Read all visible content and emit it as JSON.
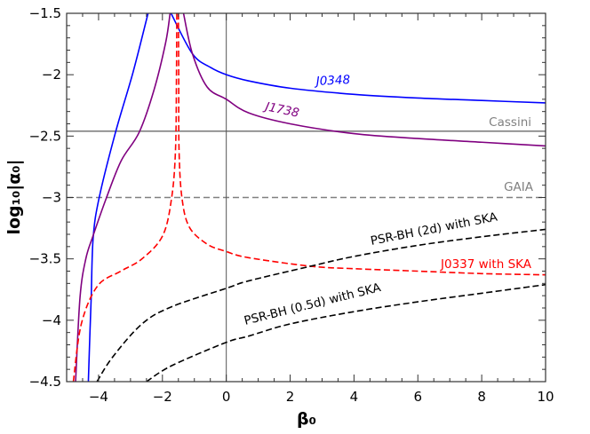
{
  "chart_data": {
    "type": "line",
    "xlabel": "β₀",
    "ylabel": "log₁₀|α₀|",
    "xlim": [
      -5,
      10
    ],
    "ylim": [
      -4.5,
      -1.5
    ],
    "x_ticks": [
      "-4",
      "-2",
      "0",
      "2",
      "4",
      "6",
      "8",
      "10"
    ],
    "y_ticks": [
      "-1.5",
      "-2",
      "-2.5",
      "-3",
      "-3.5",
      "-4",
      "-4.5"
    ],
    "grid": false,
    "vertical_reference_at": 0,
    "series": [
      {
        "name": "J0348",
        "color": "#0000ff",
        "style": "solid",
        "segments": [
          [
            [
              -4.32,
              -4.5
            ],
            [
              -4.27,
              -4.1
            ],
            [
              -4.23,
              -3.81
            ],
            [
              -4.17,
              -3.33
            ],
            [
              -3.98,
              -3.0
            ],
            [
              -3.47,
              -2.47
            ],
            [
              -2.92,
              -1.98
            ],
            [
              -2.45,
              -1.5
            ]
          ],
          [
            [
              -1.73,
              -1.5
            ],
            [
              -1.06,
              -1.83
            ],
            [
              -0.5,
              -1.94
            ],
            [
              0,
              -2.0
            ],
            [
              0.69,
              -2.05
            ],
            [
              2,
              -2.11
            ],
            [
              4,
              -2.16
            ],
            [
              6,
              -2.19
            ],
            [
              8,
              -2.21
            ],
            [
              10,
              -2.23
            ]
          ]
        ]
      },
      {
        "name": "J1738",
        "color": "#800080",
        "style": "solid",
        "segments": [
          [
            [
              -4.72,
              -4.5
            ],
            [
              -4.58,
              -3.81
            ],
            [
              -4.4,
              -3.5
            ],
            [
              -4.17,
              -3.31
            ],
            [
              -3.75,
              -3.0
            ],
            [
              -3.29,
              -2.7
            ],
            [
              -2.73,
              -2.47
            ],
            [
              -2.27,
              -2.13
            ],
            [
              -1.9,
              -1.74
            ],
            [
              -1.76,
              -1.5
            ]
          ],
          [
            [
              -1.34,
              -1.5
            ],
            [
              -1.06,
              -1.83
            ],
            [
              -0.6,
              -2.1
            ],
            [
              0,
              -2.2
            ],
            [
              0.69,
              -2.31
            ],
            [
              2,
              -2.4
            ],
            [
              4,
              -2.48
            ],
            [
              6,
              -2.52
            ],
            [
              8,
              -2.55
            ],
            [
              10,
              -2.58
            ]
          ]
        ]
      },
      {
        "name": "J0337 with SKA",
        "color": "#ff0000",
        "style": "dashed",
        "segments": [
          [
            [
              -4.79,
              -4.5
            ],
            [
              -4.54,
              -4.03
            ],
            [
              -4.03,
              -3.72
            ],
            [
              -3.3,
              -3.6
            ],
            [
              -2.64,
              -3.5
            ],
            [
              -1.99,
              -3.31
            ],
            [
              -1.71,
              -3.0
            ],
            [
              -1.59,
              -2.61
            ],
            [
              -1.56,
              -2.0
            ],
            [
              -1.55,
              -1.5
            ]
          ],
          [
            [
              -1.5,
              -1.5
            ],
            [
              -1.49,
              -2.0
            ],
            [
              -1.48,
              -2.61
            ],
            [
              -1.39,
              -3.0
            ],
            [
              -1.16,
              -3.24
            ],
            [
              -0.6,
              -3.38
            ],
            [
              0,
              -3.44
            ],
            [
              0.69,
              -3.49
            ],
            [
              2.64,
              -3.56
            ],
            [
              4,
              -3.58
            ],
            [
              6,
              -3.6
            ],
            [
              8,
              -3.62
            ],
            [
              10,
              -3.63
            ]
          ]
        ]
      },
      {
        "name": "PSR-BH (2d) with SKA",
        "color": "#000000",
        "style": "dashed",
        "segments": [
          [
            [
              -4.05,
              -4.5
            ],
            [
              -3.56,
              -4.3
            ],
            [
              -2.64,
              -4.03
            ],
            [
              -1.71,
              -3.89
            ],
            [
              0,
              -3.74
            ],
            [
              0.69,
              -3.68
            ],
            [
              2.64,
              -3.56
            ],
            [
              4,
              -3.48
            ],
            [
              6,
              -3.39
            ],
            [
              8,
              -3.32
            ],
            [
              10,
              -3.26
            ]
          ]
        ]
      },
      {
        "name": "PSR-BH (0.5d) with SKA",
        "color": "#000000",
        "style": "dashed",
        "segments": [
          [
            [
              -2.5,
              -4.5
            ],
            [
              -1.71,
              -4.37
            ],
            [
              0,
              -4.18
            ],
            [
              0.69,
              -4.13
            ],
            [
              2,
              -4.03
            ],
            [
              4,
              -3.93
            ],
            [
              6,
              -3.85
            ],
            [
              8,
              -3.78
            ],
            [
              10,
              -3.71
            ]
          ]
        ]
      }
    ],
    "reference_lines": [
      {
        "name": "Cassini",
        "y": -2.46,
        "color": "#808080",
        "style": "solid"
      },
      {
        "name": "GAIA",
        "y": -3.0,
        "color": "#808080",
        "style": "dashed"
      }
    ]
  }
}
